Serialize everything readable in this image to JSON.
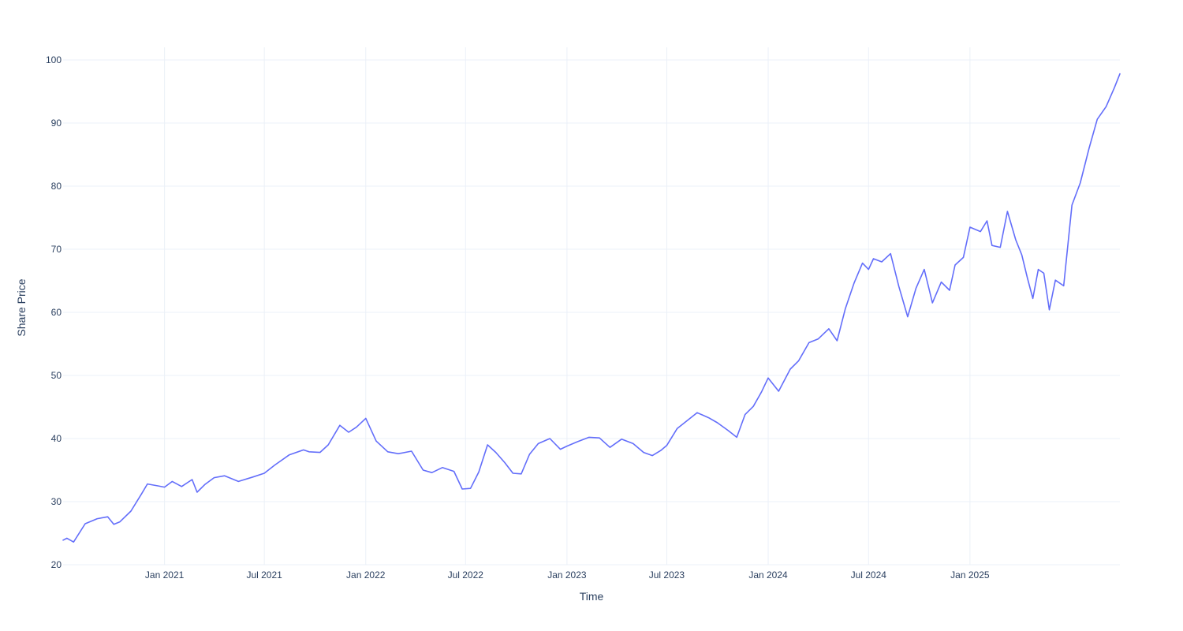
{
  "chart_data": {
    "type": "line",
    "title": "",
    "xlabel": "Time",
    "ylabel": "Share Price",
    "x_range": [
      "2020-07-01",
      "2025-09-30"
    ],
    "ylim": [
      20,
      102
    ],
    "y_ticks": [
      20,
      30,
      40,
      50,
      60,
      70,
      80,
      90,
      100
    ],
    "x_ticks": [
      {
        "date": "2021-01-01",
        "label": "Jan 2021"
      },
      {
        "date": "2021-07-01",
        "label": "Jul 2021"
      },
      {
        "date": "2022-01-01",
        "label": "Jan 2022"
      },
      {
        "date": "2022-07-01",
        "label": "Jul 2022"
      },
      {
        "date": "2023-01-01",
        "label": "Jan 2023"
      },
      {
        "date": "2023-07-01",
        "label": "Jul 2023"
      },
      {
        "date": "2024-01-01",
        "label": "Jan 2024"
      },
      {
        "date": "2024-07-01",
        "label": "Jul 2024"
      },
      {
        "date": "2025-01-01",
        "label": "Jan 2025"
      }
    ],
    "grid": true,
    "series": [
      {
        "color": "#636efa",
        "x": [
          "2020-07-01",
          "2020-07-08",
          "2020-07-20",
          "2020-08-10",
          "2020-09-01",
          "2020-09-20",
          "2020-10-01",
          "2020-10-12",
          "2020-11-01",
          "2020-11-20",
          "2020-12-01",
          "2020-12-20",
          "2021-01-01",
          "2021-01-15",
          "2021-02-01",
          "2021-02-20",
          "2021-03-01",
          "2021-03-15",
          "2021-04-01",
          "2021-04-20",
          "2021-05-15",
          "2021-06-10",
          "2021-07-01",
          "2021-07-20",
          "2021-08-15",
          "2021-09-10",
          "2021-09-20",
          "2021-10-10",
          "2021-10-25",
          "2021-11-15",
          "2021-12-01",
          "2021-12-15",
          "2022-01-01",
          "2022-01-20",
          "2022-02-10",
          "2022-03-01",
          "2022-03-25",
          "2022-04-15",
          "2022-05-01",
          "2022-05-20",
          "2022-06-10",
          "2022-06-25",
          "2022-07-10",
          "2022-07-25",
          "2022-08-10",
          "2022-08-25",
          "2022-09-10",
          "2022-09-25",
          "2022-10-10",
          "2022-10-25",
          "2022-11-10",
          "2022-12-01",
          "2022-12-20",
          "2023-01-01",
          "2023-01-20",
          "2023-02-10",
          "2023-03-01",
          "2023-03-20",
          "2023-04-10",
          "2023-05-01",
          "2023-05-20",
          "2023-06-05",
          "2023-06-20",
          "2023-07-01",
          "2023-07-20",
          "2023-08-05",
          "2023-08-25",
          "2023-09-15",
          "2023-10-01",
          "2023-10-20",
          "2023-11-05",
          "2023-11-20",
          "2023-12-05",
          "2023-12-20",
          "2024-01-01",
          "2024-01-20",
          "2024-02-10",
          "2024-02-25",
          "2024-03-15",
          "2024-04-01",
          "2024-04-20",
          "2024-05-05",
          "2024-05-20",
          "2024-06-05",
          "2024-06-20",
          "2024-07-01",
          "2024-07-10",
          "2024-07-25",
          "2024-08-10",
          "2024-08-25",
          "2024-09-10",
          "2024-09-25",
          "2024-10-10",
          "2024-10-25",
          "2024-11-10",
          "2024-11-25",
          "2024-12-05",
          "2024-12-20",
          "2025-01-01",
          "2025-01-20",
          "2025-02-01",
          "2025-02-10",
          "2025-02-25",
          "2025-03-10",
          "2025-03-25",
          "2025-04-05",
          "2025-04-15",
          "2025-04-25",
          "2025-05-05",
          "2025-05-15",
          "2025-05-25",
          "2025-06-05",
          "2025-06-20",
          "2025-07-05",
          "2025-07-20",
          "2025-08-05",
          "2025-08-20",
          "2025-09-05",
          "2025-09-20",
          "2025-09-30"
        ],
        "y": [
          23.9,
          24.2,
          23.6,
          26.5,
          27.3,
          27.6,
          26.4,
          26.8,
          28.5,
          31.2,
          32.8,
          32.5,
          32.3,
          33.2,
          32.4,
          33.5,
          31.5,
          32.7,
          33.8,
          34.1,
          33.2,
          33.9,
          34.5,
          35.8,
          37.4,
          38.2,
          37.9,
          37.8,
          39.0,
          42.1,
          41.0,
          41.8,
          43.2,
          39.6,
          37.9,
          37.6,
          38.0,
          35.0,
          34.6,
          35.4,
          34.8,
          32.0,
          32.1,
          34.7,
          39.0,
          37.8,
          36.2,
          34.5,
          34.4,
          37.5,
          39.2,
          40.0,
          38.3,
          38.8,
          39.5,
          40.2,
          40.1,
          38.6,
          39.9,
          39.2,
          37.8,
          37.3,
          38.1,
          38.9,
          41.6,
          42.7,
          44.1,
          43.3,
          42.5,
          41.3,
          40.2,
          43.8,
          45.1,
          47.4,
          49.6,
          47.5,
          51.0,
          52.3,
          55.2,
          55.8,
          57.4,
          55.5,
          60.6,
          64.7,
          67.8,
          66.8,
          68.5,
          68.0,
          69.3,
          64.1,
          59.3,
          63.8,
          66.8,
          61.5,
          64.8,
          63.5,
          67.5,
          68.7,
          73.5,
          72.8,
          74.5,
          70.6,
          70.3,
          76.0,
          71.5,
          69.1,
          65.5,
          62.2,
          66.8,
          66.2,
          60.4,
          65.1,
          64.2,
          77.0,
          80.5,
          86.0,
          90.6,
          92.6,
          95.6,
          97.8
        ]
      }
    ]
  }
}
